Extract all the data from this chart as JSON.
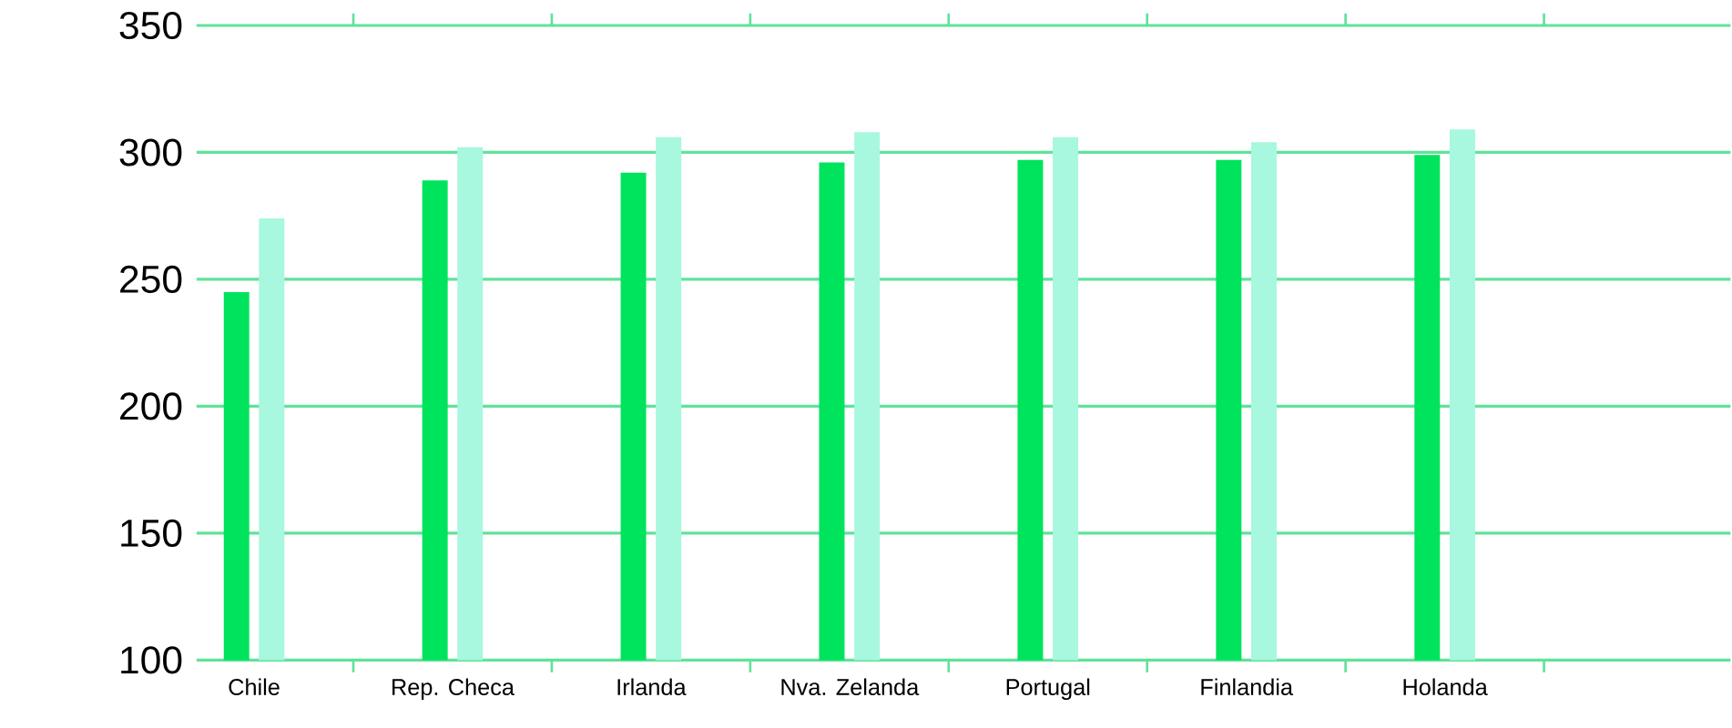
{
  "chart_data": {
    "type": "bar",
    "categories": [
      "Chile",
      "Rep. Checa",
      "Irlanda",
      "Nva. Zelanda",
      "Portugal",
      "Finlandia",
      "Holanda"
    ],
    "series": [
      {
        "color": "#00e35c",
        "values": [
          245,
          289,
          292,
          296,
          297,
          297,
          299
        ]
      },
      {
        "color": "#a8f7df",
        "values": [
          274,
          302,
          306,
          308,
          306,
          304,
          309
        ]
      }
    ],
    "ylim": [
      100,
      350
    ],
    "yticks": [
      100,
      150,
      200,
      250,
      300,
      350
    ],
    "grid": "y"
  }
}
